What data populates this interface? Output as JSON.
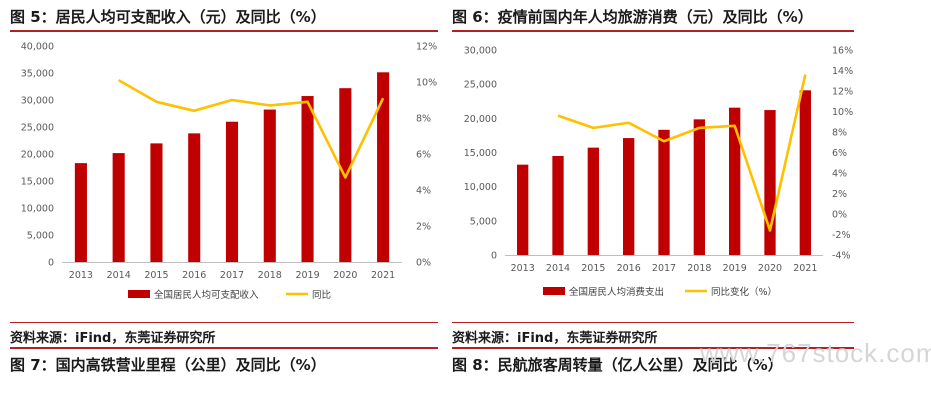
{
  "figures": {
    "fig5": {
      "title": "图 5：居民人均可支配收入（元）及同比（%）"
    },
    "fig6": {
      "title": "图 6：疫情前国内年人均旅游消费（元）及同比（%）"
    },
    "fig7": {
      "title": "图 7：国内高铁营业里程（公里）及同比（%）"
    },
    "fig8": {
      "title": "图 8：民航旅客周转量（亿人公里）及同比（%）"
    }
  },
  "sources": {
    "left": "资料来源：iFind，东莞证券研究所",
    "right": "资料来源：iFind，东莞证券研究所"
  },
  "watermark": "www.767stock.com",
  "colors": {
    "bar": "#c00000",
    "line": "#ffc000",
    "rule": "#b22024"
  },
  "chart_data": [
    {
      "type": "bar",
      "categories": [
        "2013",
        "2014",
        "2015",
        "2016",
        "2017",
        "2018",
        "2019",
        "2020",
        "2021"
      ],
      "series": [
        {
          "name": "全国居民人均可支配收入",
          "kind": "bar",
          "axis": "left",
          "values": [
            18311,
            20167,
            21966,
            23821,
            25974,
            28228,
            30733,
            32189,
            35128
          ]
        },
        {
          "name": "同比",
          "kind": "line",
          "axis": "right",
          "values": [
            null,
            10.1,
            8.9,
            8.4,
            9.0,
            8.7,
            8.9,
            4.7,
            9.1
          ]
        }
      ],
      "left_axis": {
        "min": 0,
        "max": 40000,
        "step": 5000,
        "ticks": [
          "0",
          "5,000",
          "10,000",
          "15,000",
          "20,000",
          "25,000",
          "30,000",
          "35,000",
          "40,000"
        ]
      },
      "right_axis": {
        "min": 0,
        "max": 12,
        "step": 2,
        "ticks": [
          "0%",
          "2%",
          "4%",
          "6%",
          "8%",
          "10%",
          "12%"
        ]
      },
      "legend": [
        "全国居民人均可支配收入",
        "同比"
      ],
      "legend_position": "bottom"
    },
    {
      "type": "bar",
      "categories": [
        "2013",
        "2014",
        "2015",
        "2016",
        "2017",
        "2018",
        "2019",
        "2020",
        "2021"
      ],
      "series": [
        {
          "name": "全国居民人均消费支出",
          "kind": "bar",
          "axis": "left",
          "values": [
            13220,
            14491,
            15712,
            17111,
            18322,
            19853,
            21559,
            21210,
            24100
          ]
        },
        {
          "name": "同比变化（%）",
          "kind": "line",
          "axis": "right",
          "values": [
            null,
            9.6,
            8.4,
            8.9,
            7.1,
            8.4,
            8.6,
            -1.6,
            13.6
          ]
        }
      ],
      "left_axis": {
        "min": 0,
        "max": 30000,
        "step": 5000,
        "ticks": [
          "0",
          "5,000",
          "10,000",
          "15,000",
          "20,000",
          "25,000",
          "30,000"
        ]
      },
      "right_axis": {
        "min": -4,
        "max": 16,
        "step": 2,
        "ticks": [
          "-4%",
          "-2%",
          "0%",
          "2%",
          "4%",
          "6%",
          "8%",
          "10%",
          "12%",
          "14%",
          "16%"
        ]
      },
      "legend": [
        "全国居民人均消费支出",
        "同比变化（%）"
      ],
      "legend_position": "bottom"
    }
  ]
}
